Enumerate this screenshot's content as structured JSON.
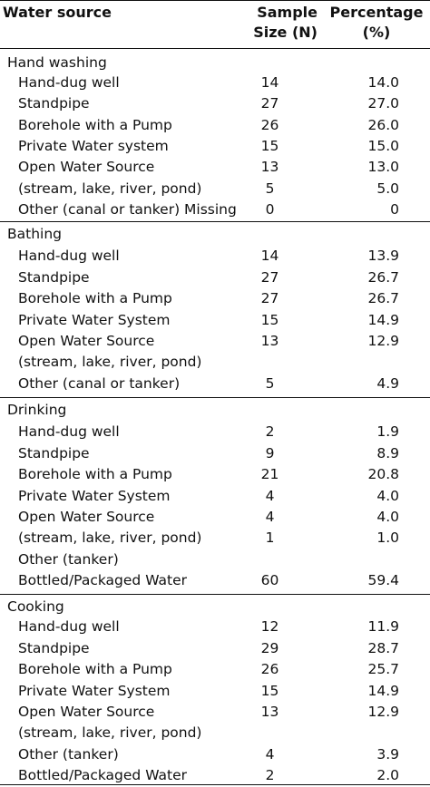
{
  "header": {
    "col_source": "Water source",
    "col_n_line1": "Sample",
    "col_n_line2": "Size (N)",
    "col_pct_line1": "Percentage",
    "col_pct_line2": "(%)"
  },
  "sections": [
    {
      "title": "Hand washing",
      "rows": [
        {
          "label": "Hand-dug well",
          "n": "14",
          "pct": "14.0"
        },
        {
          "label": "Standpipe",
          "n": "27",
          "pct": "27.0"
        },
        {
          "label": "Borehole with a Pump",
          "n": "26",
          "pct": "26.0"
        },
        {
          "label": "Private Water system",
          "n": "15",
          "pct": "15.0"
        },
        {
          "label": "Open Water Source",
          "n": "13",
          "pct": "13.0"
        },
        {
          "label": "(stream, lake, river, pond)",
          "n": "5",
          "pct": "5.0"
        },
        {
          "label": "Other (canal or tanker) Missing",
          "n": "0",
          "pct": "0"
        }
      ]
    },
    {
      "title": "Bathing",
      "rows": [
        {
          "label": "Hand-dug well",
          "n": "14",
          "pct": "13.9"
        },
        {
          "label": "Standpipe",
          "n": "27",
          "pct": "26.7"
        },
        {
          "label": "Borehole with a Pump",
          "n": "27",
          "pct": "26.7"
        },
        {
          "label": "Private Water System",
          "n": "15",
          "pct": "14.9"
        },
        {
          "label": "Open Water Source",
          "n": "13",
          "pct": "12.9"
        },
        {
          "label": "(stream, lake, river, pond)",
          "n": "",
          "pct": ""
        },
        {
          "label": "Other (canal or tanker)",
          "n": "5",
          "pct": "4.9"
        }
      ]
    },
    {
      "title": "Drinking",
      "rows": [
        {
          "label": "Hand-dug well",
          "n": "2",
          "pct": "1.9"
        },
        {
          "label": "Standpipe",
          "n": "9",
          "pct": "8.9"
        },
        {
          "label": "Borehole with a Pump",
          "n": "21",
          "pct": "20.8"
        },
        {
          "label": "Private Water System",
          "n": "4",
          "pct": "4.0"
        },
        {
          "label": "Open Water Source",
          "n": "4",
          "pct": "4.0"
        },
        {
          "label": "(stream, lake, river, pond)",
          "n": "1",
          "pct": "1.0"
        },
        {
          "label": "Other (tanker)",
          "n": "",
          "pct": ""
        },
        {
          "label": "Bottled/Packaged Water",
          "n": "60",
          "pct": "59.4"
        }
      ]
    },
    {
      "title": "Cooking",
      "rows": [
        {
          "label": "Hand-dug well",
          "n": "12",
          "pct": "11.9"
        },
        {
          "label": "Standpipe",
          "n": "29",
          "pct": "28.7"
        },
        {
          "label": "Borehole with a Pump",
          "n": "26",
          "pct": "25.7"
        },
        {
          "label": "Private Water System",
          "n": "15",
          "pct": "14.9"
        },
        {
          "label": "Open Water Source",
          "n": "13",
          "pct": "12.9"
        },
        {
          "label": "(stream, lake, river, pond)",
          "n": "",
          "pct": ""
        },
        {
          "label": "Other (tanker)",
          "n": "4",
          "pct": "3.9"
        },
        {
          "label": "Bottled/Packaged Water",
          "n": "2",
          "pct": "2.0"
        }
      ]
    }
  ]
}
